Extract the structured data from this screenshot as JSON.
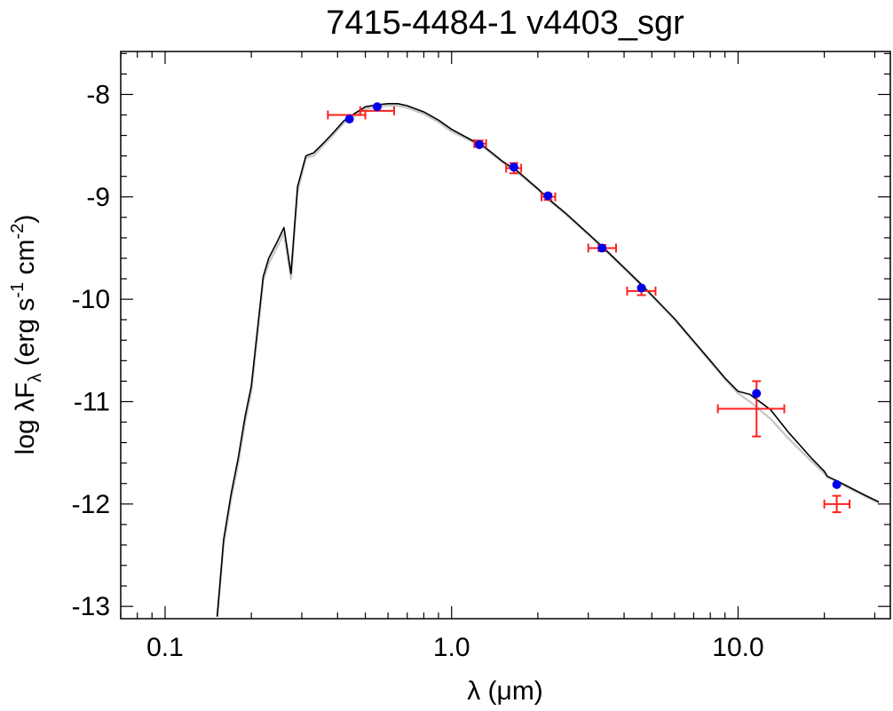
{
  "chart_data": {
    "type": "scatter",
    "title": "7415-4484-1   v4403_sgr",
    "xlabel": "λ (μm)",
    "ylabel": "log λFλ (erg s-1 cm-2)",
    "ylabel_parts": {
      "pre": "log λF",
      "sub": "λ",
      "mid1": " (erg s",
      "sup1": "-1",
      "mid2": " cm",
      "sup2": "-2",
      "post": ")"
    },
    "x_scale": "log",
    "xlim": [
      0.07,
      34
    ],
    "ylim": [
      -13.12,
      -7.58
    ],
    "x_ticks": [
      0.1,
      1.0,
      10.0
    ],
    "x_tick_labels": [
      "0.1",
      "1.0",
      "10.0"
    ],
    "y_ticks": [
      -8,
      -9,
      -10,
      -11,
      -12,
      -13
    ],
    "y_tick_labels": [
      "-8",
      "-9",
      "-10",
      "-11",
      "-12",
      "-13"
    ],
    "grid": false,
    "series": [
      {
        "kind": "model-spectrum-photosphere",
        "color": "#c8c8c8",
        "x": [
          0.152,
          0.16,
          0.17,
          0.18,
          0.19,
          0.2,
          0.21,
          0.22,
          0.23,
          0.245,
          0.26,
          0.275,
          0.29,
          0.31,
          0.33,
          0.35,
          0.37,
          0.39,
          0.42,
          0.45,
          0.5,
          0.55,
          0.6,
          0.65,
          0.7,
          0.8,
          0.9,
          1.0,
          1.2,
          1.3,
          1.5,
          1.7,
          2.0,
          2.2,
          2.5,
          3.0,
          3.4,
          4.0,
          4.5,
          5.0,
          6.0,
          7.0,
          8.0,
          9.0,
          10.0,
          11.0,
          13.0,
          15.0,
          18.0,
          20.0,
          20.5,
          22.0,
          25.0,
          28.0,
          31.0
        ],
        "y": [
          -13.1,
          -12.4,
          -11.95,
          -11.6,
          -11.2,
          -10.9,
          -10.35,
          -9.82,
          -9.65,
          -9.5,
          -9.35,
          -9.8,
          -8.95,
          -8.62,
          -8.6,
          -8.52,
          -8.45,
          -8.38,
          -8.28,
          -8.22,
          -8.14,
          -8.12,
          -8.11,
          -8.11,
          -8.13,
          -8.19,
          -8.27,
          -8.36,
          -8.47,
          -8.52,
          -8.66,
          -8.76,
          -8.93,
          -9.04,
          -9.17,
          -9.37,
          -9.51,
          -9.7,
          -9.84,
          -9.97,
          -10.2,
          -10.42,
          -10.61,
          -10.78,
          -10.92,
          -11.0,
          -11.17,
          -11.36,
          -11.58,
          -11.7,
          -11.74,
          -11.78,
          -11.86,
          -11.93,
          -11.99
        ]
      },
      {
        "kind": "model-spectrum-total",
        "color": "#000000",
        "x": [
          0.152,
          0.16,
          0.17,
          0.18,
          0.19,
          0.2,
          0.21,
          0.22,
          0.23,
          0.245,
          0.26,
          0.275,
          0.29,
          0.31,
          0.33,
          0.35,
          0.37,
          0.39,
          0.42,
          0.45,
          0.5,
          0.55,
          0.6,
          0.65,
          0.7,
          0.8,
          0.9,
          1.0,
          1.2,
          1.3,
          1.5,
          1.7,
          2.0,
          2.2,
          2.5,
          3.0,
          3.4,
          4.0,
          4.5,
          5.0,
          6.0,
          7.0,
          8.0,
          9.0,
          10.0,
          11.0,
          13.0,
          15.0,
          18.0,
          20.0,
          20.5,
          22.0,
          25.0,
          28.0,
          31.0
        ],
        "y": [
          -13.1,
          -12.35,
          -11.9,
          -11.55,
          -11.15,
          -10.85,
          -10.3,
          -9.78,
          -9.6,
          -9.45,
          -9.3,
          -9.75,
          -8.9,
          -8.6,
          -8.57,
          -8.5,
          -8.43,
          -8.36,
          -8.26,
          -8.2,
          -8.12,
          -8.1,
          -8.09,
          -8.09,
          -8.11,
          -8.17,
          -8.25,
          -8.34,
          -8.46,
          -8.51,
          -8.65,
          -8.75,
          -8.92,
          -9.03,
          -9.16,
          -9.36,
          -9.5,
          -9.69,
          -9.83,
          -9.96,
          -10.19,
          -10.41,
          -10.6,
          -10.77,
          -10.9,
          -10.93,
          -11.08,
          -11.3,
          -11.55,
          -11.68,
          -11.73,
          -11.77,
          -11.85,
          -11.92,
          -11.98
        ]
      },
      {
        "kind": "observed-photometry",
        "color": "#ff2020",
        "points": [
          {
            "x": 0.44,
            "y": -8.2,
            "xerr": [
              0.37,
              0.5
            ],
            "yerr": 0.0
          },
          {
            "x": 0.55,
            "y": -8.16,
            "xerr": [
              0.48,
              0.63
            ],
            "yerr": 0.0
          },
          {
            "x": 1.25,
            "y": -8.48,
            "xerr": [
              1.2,
              1.32
            ],
            "yerr": 0.03
          },
          {
            "x": 1.65,
            "y": -8.72,
            "xerr": [
              1.55,
              1.75
            ],
            "yerr": 0.05
          },
          {
            "x": 2.17,
            "y": -9.0,
            "xerr": [
              2.06,
              2.3
            ],
            "yerr": 0.03
          },
          {
            "x": 3.35,
            "y": -9.5,
            "xerr": [
              3.0,
              3.75
            ],
            "yerr": 0.03
          },
          {
            "x": 4.6,
            "y": -9.92,
            "xerr": [
              4.1,
              5.15
            ],
            "yerr": 0.04
          },
          {
            "x": 11.6,
            "y": -11.07,
            "xerr": [
              8.5,
              14.5
            ],
            "yerr": 0.27
          },
          {
            "x": 22.1,
            "y": -12.0,
            "xerr": [
              20.0,
              24.5
            ],
            "yerr": 0.08
          }
        ]
      },
      {
        "kind": "model-photometry",
        "color": "#0000ee",
        "x": [
          0.44,
          0.55,
          1.25,
          1.65,
          2.17,
          3.35,
          4.6,
          11.6,
          22.1
        ],
        "y": [
          -8.24,
          -8.12,
          -8.49,
          -8.71,
          -8.99,
          -9.5,
          -9.89,
          -10.92,
          -11.81
        ]
      }
    ]
  }
}
